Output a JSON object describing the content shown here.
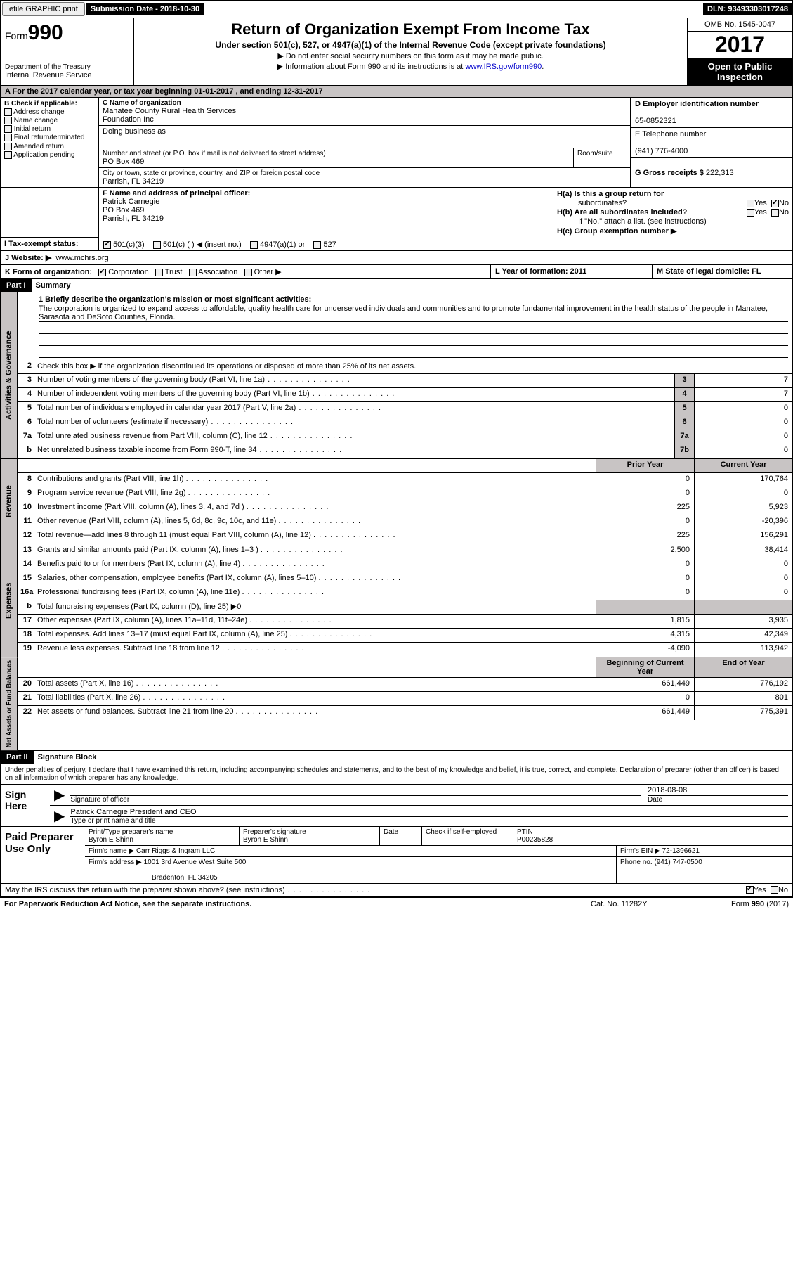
{
  "top": {
    "efile": "efile GRAPHIC print",
    "submission": "Submission Date - 2018-10-30",
    "dln": "DLN: 93493303017248"
  },
  "header": {
    "form_prefix": "Form",
    "form_no": "990",
    "dept1": "Department of the Treasury",
    "dept2": "Internal Revenue Service",
    "title": "Return of Organization Exempt From Income Tax",
    "sub1": "Under section 501(c), 527, or 4947(a)(1) of the Internal Revenue Code (except private foundations)",
    "sub2a": "▶ Do not enter social security numbers on this form as it may be made public.",
    "sub2b": "▶ Information about Form 990 and its instructions is at ",
    "link": "www.IRS.gov/form990",
    "omb": "OMB No. 1545-0047",
    "year": "2017",
    "otp1": "Open to Public",
    "otp2": "Inspection"
  },
  "rowA": "A  For the 2017 calendar year, or tax year beginning 01-01-2017    , and ending 12-31-2017",
  "B": {
    "hdr": "B Check if applicable:",
    "addr": "Address change",
    "name": "Name change",
    "init": "Initial return",
    "final": "Final return/terminated",
    "amend": "Amended return",
    "app": "Application pending"
  },
  "C": {
    "name_lbl": "C Name of organization",
    "name1": "Manatee County Rural Health Services",
    "name2": "Foundation Inc",
    "dba_lbl": "Doing business as",
    "addr_lbl": "Number and street (or P.O. box if mail is not delivered to street address)",
    "room_lbl": "Room/suite",
    "addr": "PO Box 469",
    "city_lbl": "City or town, state or province, country, and ZIP or foreign postal code",
    "city": "Parrish, FL  34219"
  },
  "D": {
    "lbl": "D Employer identification number",
    "val": "65-0852321"
  },
  "E": {
    "lbl": "E Telephone number",
    "val": "(941) 776-4000"
  },
  "G": {
    "lbl": "G Gross receipts $",
    "val": "222,313"
  },
  "F": {
    "lbl": "F  Name and address of principal officer:",
    "name": "Patrick Carnegie",
    "addr1": "PO Box 469",
    "addr2": "Parrish, FL  34219"
  },
  "H": {
    "a": "H(a)  Is this a group return for",
    "a2": "subordinates?",
    "b": "H(b)  Are all subordinates included?",
    "bnote": "If \"No,\" attach a list. (see instructions)",
    "c": "H(c)  Group exemption number ▶",
    "yes": "Yes",
    "no": "No"
  },
  "I": {
    "lbl": "I  Tax-exempt status:",
    "o1": "501(c)(3)",
    "o2": "501(c) (  ) ◀ (insert no.)",
    "o3": "4947(a)(1) or",
    "o4": "527"
  },
  "J": {
    "lbl": "J  Website: ▶",
    "val": "www.mchrs.org"
  },
  "K": {
    "lbl": "K Form of organization:",
    "corp": "Corporation",
    "trust": "Trust",
    "assoc": "Association",
    "other": "Other ▶"
  },
  "L": "L Year of formation: 2011",
  "M": "M State of legal domicile: FL",
  "part1": {
    "hdr": "Part I",
    "title": "Summary"
  },
  "summary": {
    "l1": "1 Briefly describe the organization's mission or most significant activities:",
    "mission": "The corporation is organized to expand access to affordable, quality health care for underserved individuals and communities and to promote fundamental improvement in the health status of the people in Manatee, Sarasota and DeSoto Counties, Florida.",
    "l2": "Check this box ▶        if the organization discontinued its operations or disposed of more than 25% of its net assets.",
    "rows": [
      {
        "n": "3",
        "d": "Number of voting members of the governing body (Part VI, line 1a)",
        "c": "3",
        "v": "7"
      },
      {
        "n": "4",
        "d": "Number of independent voting members of the governing body (Part VI, line 1b)",
        "c": "4",
        "v": "7"
      },
      {
        "n": "5",
        "d": "Total number of individuals employed in calendar year 2017 (Part V, line 2a)",
        "c": "5",
        "v": "0"
      },
      {
        "n": "6",
        "d": "Total number of volunteers (estimate if necessary)",
        "c": "6",
        "v": "0"
      },
      {
        "n": "7a",
        "d": "Total unrelated business revenue from Part VIII, column (C), line 12",
        "c": "7a",
        "v": "0"
      },
      {
        "n": "b",
        "d": "Net unrelated business taxable income from Form 990-T, line 34",
        "c": "7b",
        "v": "0"
      }
    ],
    "prior": "Prior Year",
    "curr": "Current Year",
    "rev": [
      {
        "n": "8",
        "d": "Contributions and grants (Part VIII, line 1h)",
        "p": "0",
        "c": "170,764"
      },
      {
        "n": "9",
        "d": "Program service revenue (Part VIII, line 2g)",
        "p": "0",
        "c": "0"
      },
      {
        "n": "10",
        "d": "Investment income (Part VIII, column (A), lines 3, 4, and 7d )",
        "p": "225",
        "c": "5,923"
      },
      {
        "n": "11",
        "d": "Other revenue (Part VIII, column (A), lines 5, 6d, 8c, 9c, 10c, and 11e)",
        "p": "0",
        "c": "-20,396"
      },
      {
        "n": "12",
        "d": "Total revenue—add lines 8 through 11 (must equal Part VIII, column (A), line 12)",
        "p": "225",
        "c": "156,291"
      }
    ],
    "exp": [
      {
        "n": "13",
        "d": "Grants and similar amounts paid (Part IX, column (A), lines 1–3 )",
        "p": "2,500",
        "c": "38,414"
      },
      {
        "n": "14",
        "d": "Benefits paid to or for members (Part IX, column (A), line 4)",
        "p": "0",
        "c": "0"
      },
      {
        "n": "15",
        "d": "Salaries, other compensation, employee benefits (Part IX, column (A), lines 5–10)",
        "p": "0",
        "c": "0"
      },
      {
        "n": "16a",
        "d": "Professional fundraising fees (Part IX, column (A), line 11e)",
        "p": "0",
        "c": "0"
      },
      {
        "n": "b",
        "d": "Total fundraising expenses (Part IX, column (D), line 25) ▶0",
        "p": "",
        "c": "",
        "grey": true
      },
      {
        "n": "17",
        "d": "Other expenses (Part IX, column (A), lines 11a–11d, 11f–24e)",
        "p": "1,815",
        "c": "3,935"
      },
      {
        "n": "18",
        "d": "Total expenses. Add lines 13–17 (must equal Part IX, column (A), line 25)",
        "p": "4,315",
        "c": "42,349"
      },
      {
        "n": "19",
        "d": "Revenue less expenses. Subtract line 18 from line 12",
        "p": "-4,090",
        "c": "113,942"
      }
    ],
    "begin": "Beginning of Current Year",
    "end": "End of Year",
    "net": [
      {
        "n": "20",
        "d": "Total assets (Part X, line 16)",
        "p": "661,449",
        "c": "776,192"
      },
      {
        "n": "21",
        "d": "Total liabilities (Part X, line 26)",
        "p": "0",
        "c": "801"
      },
      {
        "n": "22",
        "d": "Net assets or fund balances. Subtract line 21 from line 20",
        "p": "661,449",
        "c": "775,391"
      }
    ]
  },
  "vtabs": {
    "gov": "Activities & Governance",
    "rev": "Revenue",
    "exp": "Expenses",
    "net": "Net Assets or Fund Balances"
  },
  "part2": {
    "hdr": "Part II",
    "title": "Signature Block"
  },
  "sig": {
    "intro": "Under penalties of perjury, I declare that I have examined this return, including accompanying schedules and statements, and to the best of my knowledge and belief, it is true, correct, and complete. Declaration of preparer (other than officer) is based on all information of which preparer has any knowledge.",
    "here": "Sign Here",
    "sig_lbl": "Signature of officer",
    "date_lbl": "Date",
    "date": "2018-08-08",
    "officer": "Patrick Carnegie President and CEO",
    "type_lbl": "Type or print name and title"
  },
  "prep": {
    "hdr": "Paid Preparer Use Only",
    "p_name_lbl": "Print/Type preparer's name",
    "p_name": "Byron E Shinn",
    "p_sig_lbl": "Preparer's signature",
    "p_sig": "Byron E Shinn",
    "date_lbl": "Date",
    "check_lbl": "Check        if self-employed",
    "ptin_lbl": "PTIN",
    "ptin": "P00235828",
    "firm_lbl": "Firm's name     ▶",
    "firm": "Carr Riggs & Ingram LLC",
    "ein_lbl": "Firm's EIN ▶",
    "ein": "72-1396621",
    "addr_lbl": "Firm's address ▶",
    "addr1": "1001 3rd Avenue West Suite 500",
    "addr2": "Bradenton, FL  34205",
    "phone_lbl": "Phone no.",
    "phone": "(941) 747-0500"
  },
  "discuss": "May the IRS discuss this return with the preparer shown above? (see instructions)",
  "footer": {
    "pra": "For Paperwork Reduction Act Notice, see the separate instructions.",
    "cat": "Cat. No. 11282Y",
    "form": "Form 990 (2017)"
  }
}
